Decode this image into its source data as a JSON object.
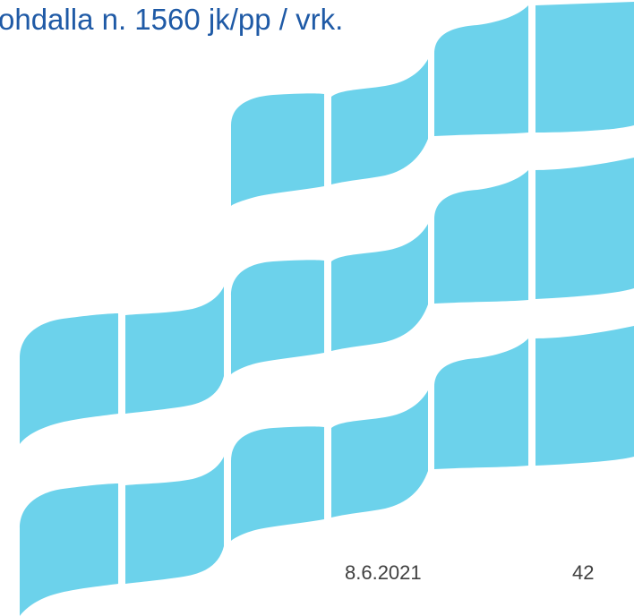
{
  "slide": {
    "heading": "ohdalla n. 1560 jk/pp / vrk.",
    "date": "8.6.2021",
    "page_number": "42"
  },
  "colors": {
    "heading_text": "#1F5AA6",
    "wave_tile": "#6CD2EB",
    "footer_text": "#404040"
  },
  "decoration": {
    "icon": "wave-tiles-pattern"
  }
}
